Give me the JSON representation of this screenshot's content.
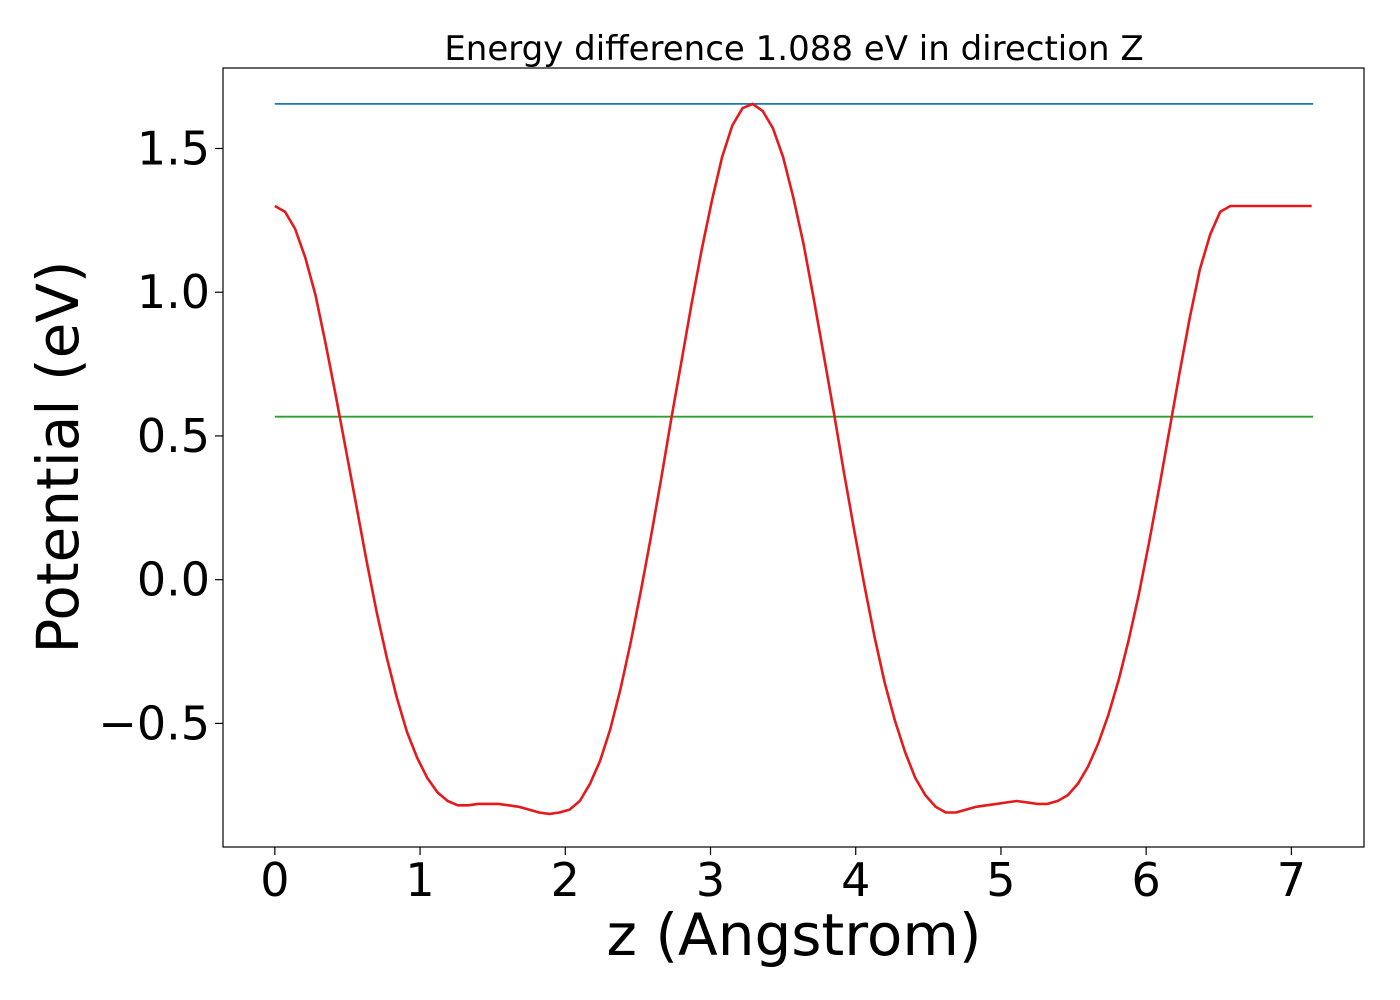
{
  "chart_data": {
    "type": "line",
    "title": "Energy difference 1.088 eV in direction Z",
    "xlabel": "z (Angstrom)",
    "ylabel": "Potential (eV)",
    "xlim": [
      -0.357,
      7.5
    ],
    "ylim": [
      -0.93,
      1.78
    ],
    "x_ticks": [
      0,
      1,
      2,
      3,
      4,
      5,
      6,
      7
    ],
    "x_tick_labels": [
      "0",
      "1",
      "2",
      "3",
      "4",
      "5",
      "6",
      "7"
    ],
    "y_ticks": [
      -0.5,
      0.0,
      0.5,
      1.0,
      1.5
    ],
    "y_tick_labels": [
      "−0.5",
      "0.0",
      "0.5",
      "1.0",
      "1.5"
    ],
    "grid": false,
    "series": [
      {
        "color": "#1f77b4",
        "x": [
          0,
          7.15
        ],
        "y": [
          1.655,
          1.655
        ]
      },
      {
        "color": "#2ca02c",
        "x": [
          0,
          7.15
        ],
        "y": [
          0.567,
          0.567
        ]
      },
      {
        "color": "#e41a1c",
        "x": [
          0.0,
          0.07,
          0.14,
          0.21,
          0.28,
          0.35,
          0.42,
          0.49,
          0.56,
          0.63,
          0.7,
          0.77,
          0.84,
          0.91,
          0.98,
          1.05,
          1.12,
          1.19,
          1.26,
          1.33,
          1.4,
          1.47,
          1.54,
          1.61,
          1.68,
          1.75,
          1.82,
          1.89,
          1.96,
          2.03,
          2.1,
          2.17,
          2.24,
          2.31,
          2.38,
          2.45,
          2.52,
          2.59,
          2.66,
          2.73,
          2.8,
          2.87,
          2.94,
          3.01,
          3.08,
          3.15,
          3.22,
          3.29,
          3.36,
          3.43,
          3.5,
          3.57,
          3.64,
          3.71,
          3.78,
          3.85,
          3.92,
          3.99,
          4.06,
          4.13,
          4.2,
          4.27,
          4.34,
          4.41,
          4.48,
          4.55,
          4.62,
          4.69,
          4.76,
          4.83,
          4.9,
          4.97,
          5.04,
          5.11,
          5.18,
          5.25,
          5.32,
          5.39,
          5.46,
          5.53,
          5.6,
          5.67,
          5.74,
          5.81,
          5.88,
          5.95,
          6.02,
          6.09,
          6.16,
          6.23,
          6.3,
          6.37,
          6.44,
          6.51,
          6.58,
          6.65,
          6.72,
          6.79,
          6.86,
          6.93,
          7.0,
          7.07,
          7.14
        ],
        "y": [
          1.3,
          1.28,
          1.22,
          1.12,
          0.99,
          0.82,
          0.64,
          0.45,
          0.26,
          0.07,
          -0.11,
          -0.27,
          -0.41,
          -0.53,
          -0.62,
          -0.69,
          -0.74,
          -0.77,
          -0.785,
          -0.785,
          -0.78,
          -0.78,
          -0.78,
          -0.785,
          -0.79,
          -0.8,
          -0.81,
          -0.815,
          -0.81,
          -0.8,
          -0.77,
          -0.71,
          -0.63,
          -0.52,
          -0.38,
          -0.22,
          -0.04,
          0.15,
          0.35,
          0.56,
          0.76,
          0.96,
          1.15,
          1.32,
          1.47,
          1.58,
          1.64,
          1.655,
          1.63,
          1.57,
          1.47,
          1.33,
          1.17,
          0.98,
          0.78,
          0.58,
          0.37,
          0.17,
          -0.02,
          -0.2,
          -0.36,
          -0.49,
          -0.6,
          -0.69,
          -0.75,
          -0.79,
          -0.81,
          -0.81,
          -0.8,
          -0.79,
          -0.785,
          -0.78,
          -0.775,
          -0.77,
          -0.775,
          -0.78,
          -0.78,
          -0.77,
          -0.75,
          -0.71,
          -0.65,
          -0.57,
          -0.47,
          -0.35,
          -0.21,
          -0.05,
          0.13,
          0.32,
          0.52,
          0.72,
          0.91,
          1.08,
          1.2,
          1.28,
          1.3,
          1.3,
          1.3,
          1.3,
          1.3,
          1.3,
          1.3,
          1.3,
          1.3
        ]
      }
    ]
  }
}
